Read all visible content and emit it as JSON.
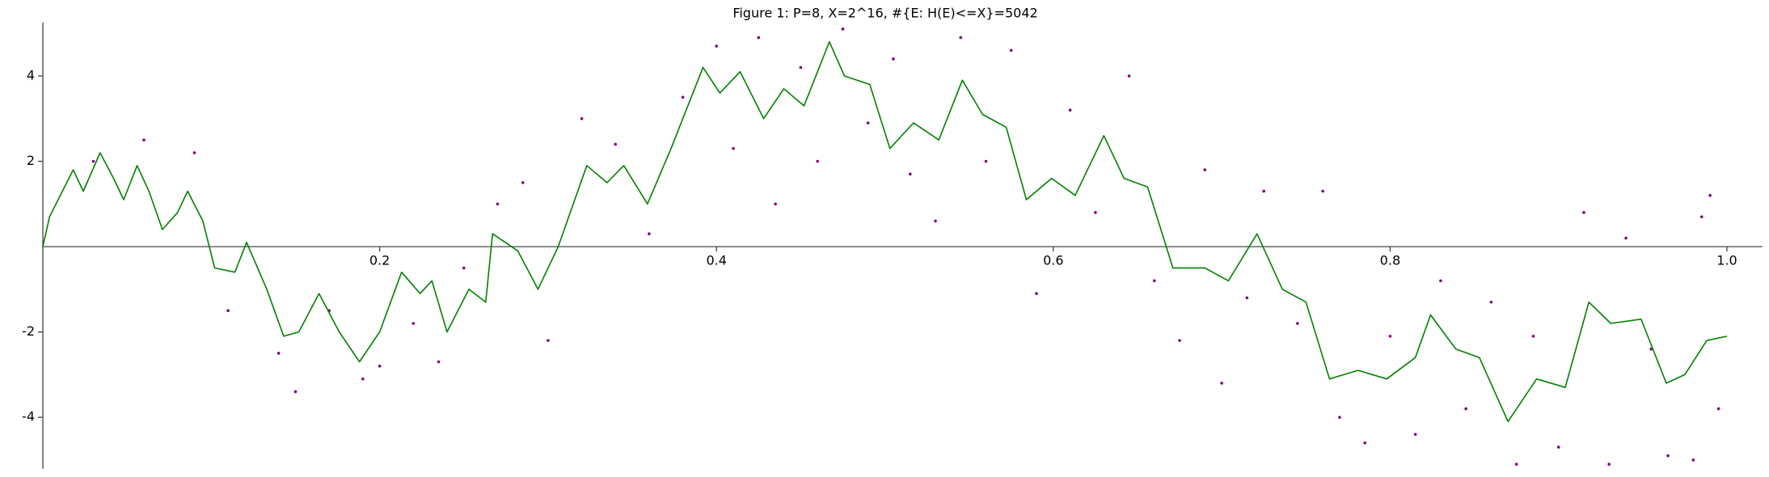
{
  "chart_data": {
    "type": "line",
    "title": "Figure 1: P=8, X=2^16, #{E: H(E)<=X}=5042",
    "xlim": [
      0,
      1.021
    ],
    "ylim": [
      -5.21,
      5.25
    ],
    "xticks": [
      0.2,
      0.4,
      0.6,
      0.8,
      {
        "value": 1,
        "label": "1.0"
      }
    ],
    "yticks": [
      -4,
      -2,
      2,
      4
    ],
    "series": [
      {
        "type": "scatter",
        "color": "#800080",
        "x": [
          0.03,
          0.06,
          0.09,
          0.11,
          0.14,
          0.15,
          0.17,
          0.19,
          0.2,
          0.22,
          0.235,
          0.25,
          0.27,
          0.285,
          0.3,
          0.32,
          0.34,
          0.36,
          0.38,
          0.4,
          0.41,
          0.425,
          0.435,
          0.45,
          0.46,
          0.475,
          0.49,
          0.505,
          0.515,
          0.53,
          0.545,
          0.56,
          0.575,
          0.59,
          0.61,
          0.625,
          0.645,
          0.66,
          0.675,
          0.69,
          0.7,
          0.715,
          0.725,
          0.745,
          0.76,
          0.77,
          0.785,
          0.8,
          0.815,
          0.83,
          0.845,
          0.86,
          0.875,
          0.885,
          0.9,
          0.915,
          0.93,
          0.94,
          0.955,
          0.965,
          0.98,
          0.985,
          0.99,
          0.995
        ],
        "values": [
          2.0,
          2.5,
          2.2,
          -1.5,
          -2.5,
          -3.4,
          -1.5,
          -3.1,
          -2.8,
          -1.8,
          -2.7,
          -0.5,
          1.0,
          1.5,
          -2.2,
          3.0,
          2.4,
          0.3,
          3.5,
          4.7,
          2.3,
          4.9,
          1.0,
          4.2,
          2.0,
          5.1,
          2.9,
          4.4,
          1.7,
          0.6,
          4.9,
          2.0,
          4.6,
          -1.1,
          3.2,
          0.8,
          4.0,
          -0.8,
          -2.2,
          1.8,
          -3.2,
          -1.2,
          1.3,
          -1.8,
          1.3,
          -4.0,
          -4.6,
          -2.1,
          -4.4,
          -0.8,
          -3.8,
          -1.3,
          -5.1,
          -2.1,
          -4.7,
          0.8,
          -5.1,
          0.2,
          -2.4,
          -4.9,
          -5.0,
          0.7,
          1.2,
          -3.8
        ]
      },
      {
        "type": "line",
        "color": "#008000",
        "x": [
          0,
          0.004,
          0.018,
          0.024,
          0.034,
          0.042,
          0.048,
          0.056,
          0.063,
          0.071,
          0.08,
          0.086,
          0.095,
          0.102,
          0.114,
          0.121,
          0.133,
          0.143,
          0.152,
          0.164,
          0.176,
          0.188,
          0.2,
          0.213,
          0.224,
          0.231,
          0.24,
          0.253,
          0.263,
          0.267,
          0.282,
          0.294,
          0.306,
          0.323,
          0.335,
          0.345,
          0.359,
          0.373,
          0.392,
          0.402,
          0.414,
          0.428,
          0.44,
          0.452,
          0.467,
          0.476,
          0.491,
          0.503,
          0.517,
          0.532,
          0.546,
          0.558,
          0.572,
          0.584,
          0.599,
          0.613,
          0.63,
          0.642,
          0.656,
          0.671,
          0.69,
          0.704,
          0.721,
          0.736,
          0.75,
          0.764,
          0.781,
          0.798,
          0.815,
          0.824,
          0.839,
          0.853,
          0.87,
          0.887,
          0.904,
          0.918,
          0.931,
          0.949,
          0.964,
          0.975,
          0.988,
          1.0
        ],
        "values": [
          0,
          0.7,
          1.8,
          1.3,
          2.2,
          1.6,
          1.1,
          1.9,
          1.3,
          0.4,
          0.8,
          1.3,
          0.6,
          -0.5,
          -0.6,
          0.1,
          -1.0,
          -2.1,
          -2.0,
          -1.1,
          -2.0,
          -2.7,
          -2.0,
          -0.6,
          -1.1,
          -0.8,
          -2.0,
          -1.0,
          -1.3,
          0.3,
          -0.1,
          -1.0,
          0.0,
          1.9,
          1.5,
          1.9,
          1.0,
          2.3,
          4.2,
          3.6,
          4.1,
          3.0,
          3.7,
          3.3,
          4.8,
          4.0,
          3.8,
          2.3,
          2.9,
          2.5,
          3.9,
          3.1,
          2.8,
          1.1,
          1.6,
          1.2,
          2.6,
          1.6,
          1.4,
          -0.5,
          -0.5,
          -0.8,
          0.3,
          -1.0,
          -1.3,
          -3.1,
          -2.9,
          -3.1,
          -2.6,
          -1.6,
          -2.4,
          -2.6,
          -4.1,
          -3.1,
          -3.3,
          -1.3,
          -1.8,
          -1.7,
          -3.2,
          -3.0,
          -2.2,
          -2.1
        ]
      }
    ]
  }
}
